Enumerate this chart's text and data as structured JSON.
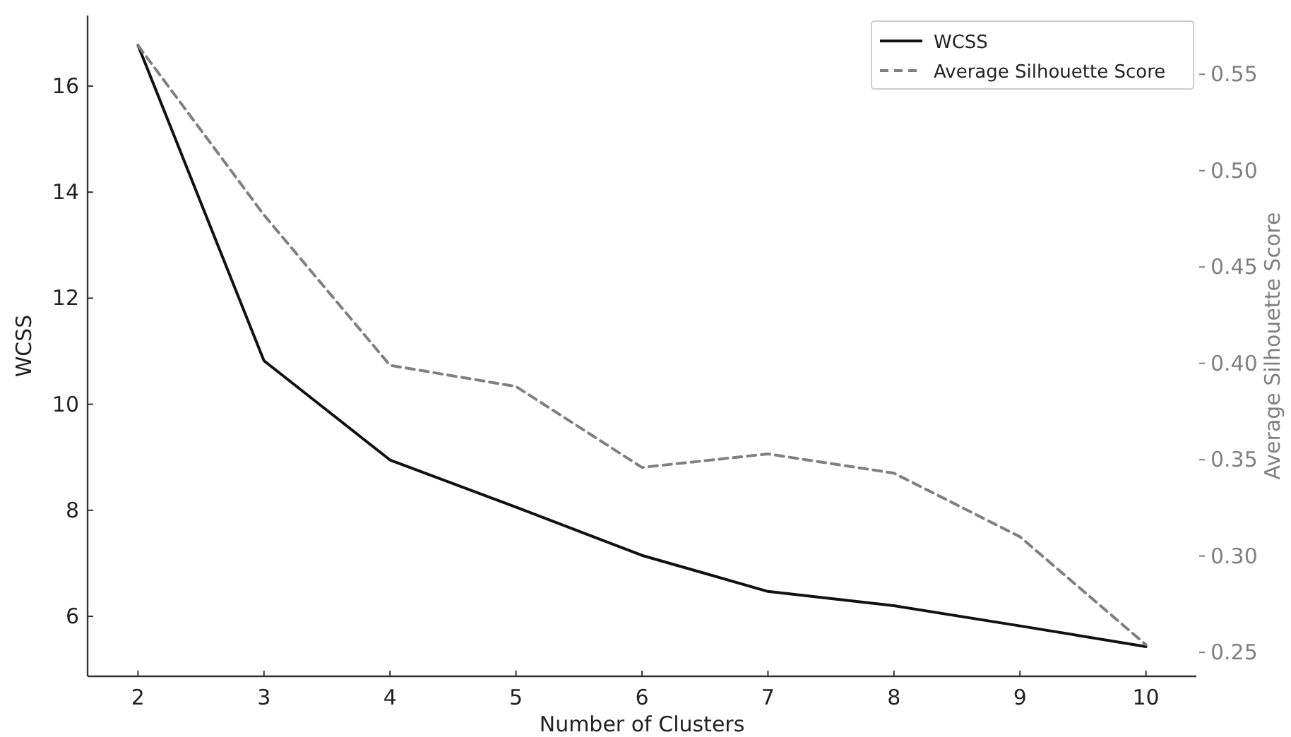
{
  "chart_data": {
    "type": "line",
    "xlabel": "Number of Clusters",
    "ylabel": "WCSS",
    "y2label": "Average Silhouette Score",
    "x": [
      2,
      3,
      4,
      5,
      6,
      7,
      8,
      9,
      10
    ],
    "series": [
      {
        "name": "WCSS",
        "color": "#111111",
        "line_style": "solid",
        "values": [
          16.77,
          10.82,
          8.95,
          8.06,
          7.15,
          6.47,
          6.2,
          5.82,
          5.43
        ]
      },
      {
        "name": "Average Silhouette Score",
        "color": "#808080",
        "line_style": "dashed",
        "axis": "y2",
        "values": [
          0.565,
          0.477,
          0.399,
          0.388,
          0.346,
          0.353,
          0.343,
          0.31,
          0.254
        ]
      }
    ],
    "xlim": [
      1.6,
      10.4
    ],
    "xticks": [
      2,
      3,
      4,
      5,
      6,
      7,
      8,
      9,
      10
    ],
    "ylim": [
      4.87,
      17.33
    ],
    "yticks": [
      6,
      8,
      10,
      12,
      14,
      16
    ],
    "y2lim": [
      0.2376,
      0.5805
    ],
    "y2ticks": [
      0.25,
      {
        "value": 0.3,
        "label": "0.30"
      },
      0.35,
      {
        "value": 0.4,
        "label": "0.40"
      },
      0.45,
      {
        "value": 0.5,
        "label": "0.50"
      },
      0.55
    ],
    "grid": false,
    "legend": "top right",
    "marker": "none"
  }
}
